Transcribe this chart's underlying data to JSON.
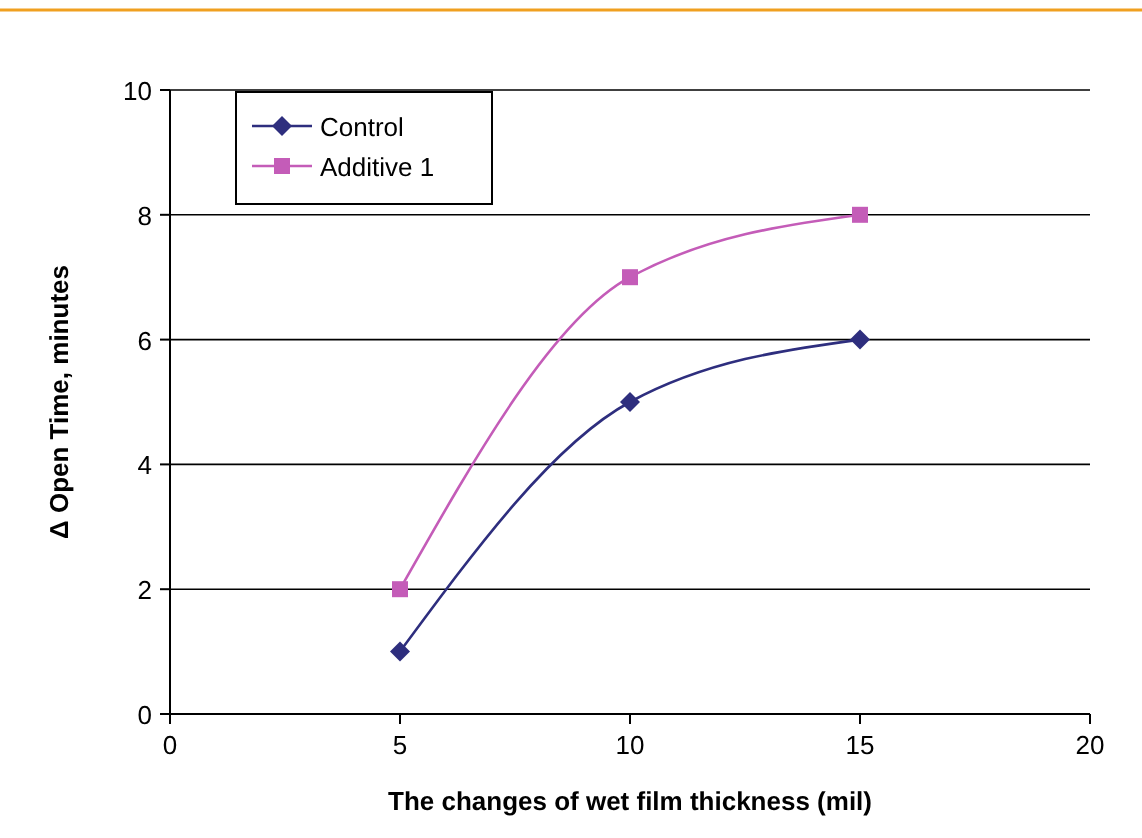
{
  "chart_data": {
    "type": "line",
    "xlabel": "The changes of wet film thickness (mil)",
    "ylabel": "Δ Open Time, minutes",
    "x": [
      5,
      10,
      15
    ],
    "series": [
      {
        "name": "Control",
        "color": "#2e2e7e",
        "values": [
          1,
          5,
          6
        ],
        "marker": "diamond"
      },
      {
        "name": "Additive 1",
        "color": "#c45cb8",
        "values": [
          2,
          7,
          8
        ],
        "marker": "square"
      }
    ],
    "xlim": [
      0,
      20
    ],
    "xticks": [
      0,
      5,
      10,
      15,
      20
    ],
    "ylim": [
      0,
      10
    ],
    "yticks": [
      0,
      2,
      4,
      6,
      8,
      10
    ],
    "grid": "y",
    "legend": "top left",
    "line_style": "solid"
  }
}
